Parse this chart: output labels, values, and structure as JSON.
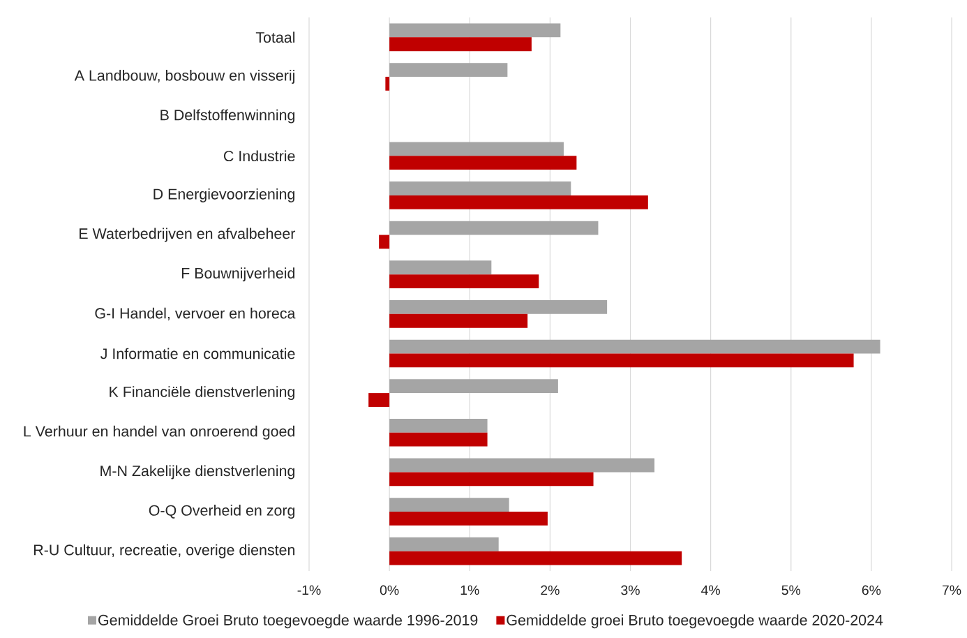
{
  "chart_data": {
    "type": "bar",
    "orientation": "horizontal",
    "categories": [
      "Totaal",
      "A Landbouw, bosbouw en visserij",
      "B Delfstoffenwinning",
      "C Industrie",
      "D Energievoorziening",
      "E Waterbedrijven en afvalbeheer",
      "F Bouwnijverheid",
      "G-I Handel, vervoer en horeca",
      "J Informatie en communicatie",
      "K Financiële dienstverlening",
      "L Verhuur en handel van onroerend goed",
      "M-N Zakelijke dienstverlening",
      "O-Q Overheid en zorg",
      "R-U Cultuur, recreatie, overige diensten"
    ],
    "series": [
      {
        "name": "Gemiddelde Groei Bruto toegevoegde waarde 1996-2019",
        "color": "#a5a5a5",
        "values": [
          2.13,
          1.47,
          null,
          2.17,
          2.26,
          2.6,
          1.27,
          2.71,
          6.11,
          2.1,
          1.22,
          3.3,
          1.49,
          1.36
        ]
      },
      {
        "name": "Gemiddelde groei Bruto toegevoegde waarde 2020-2024",
        "color": "#c00000",
        "values": [
          1.77,
          -0.05,
          null,
          2.33,
          3.22,
          -0.13,
          1.86,
          1.72,
          5.78,
          -0.26,
          1.22,
          2.54,
          1.97,
          3.64
        ]
      }
    ],
    "xlim": [
      -1,
      7
    ],
    "xticks": [
      {
        "value": -1,
        "label": "-1%"
      },
      {
        "value": 0,
        "label": "0%"
      },
      {
        "value": 1,
        "label": "1%"
      },
      {
        "value": 2,
        "label": "2%"
      },
      {
        "value": 3,
        "label": "3%"
      },
      {
        "value": 4,
        "label": "4%"
      },
      {
        "value": 5,
        "label": "5%"
      },
      {
        "value": 6,
        "label": "6%"
      },
      {
        "value": 7,
        "label": "7%"
      }
    ],
    "grid": "x",
    "legend": "bottom"
  }
}
